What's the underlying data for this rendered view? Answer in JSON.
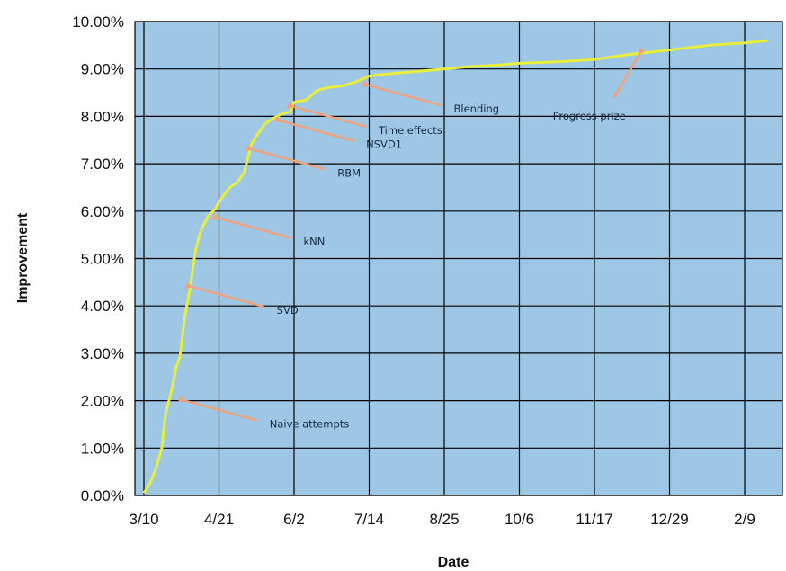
{
  "chart_data": {
    "type": "line",
    "title": "",
    "xlabel": "Date",
    "ylabel": "Improvement",
    "x_ticks": [
      "3/10",
      "4/21",
      "6/2",
      "7/14",
      "8/25",
      "10/6",
      "11/17",
      "12/29",
      "2/9"
    ],
    "y_ticks": [
      "0.00%",
      "1.00%",
      "2.00%",
      "3.00%",
      "4.00%",
      "5.00%",
      "6.00%",
      "7.00%",
      "8.00%",
      "9.00%",
      "10.00%"
    ],
    "ylim": [
      0,
      10
    ],
    "grid": true,
    "colors": {
      "plot_background": "#9ec7e6",
      "grid": "#000000",
      "line": "#e8ef3c",
      "arrow": "#f4a07a"
    },
    "series": [
      {
        "name": "",
        "x": [
          "3/10",
          "3/14",
          "3/17",
          "3/20",
          "3/22",
          "3/26",
          "3/28",
          "3/30",
          "4/2",
          "4/5",
          "4/6",
          "4/8",
          "4/11",
          "4/15",
          "4/19",
          "4/21",
          "4/27",
          "5/1",
          "5/5",
          "5/9",
          "5/13",
          "5/17",
          "5/21",
          "5/26",
          "5/31",
          "6/2",
          "6/5",
          "6/9",
          "6/15",
          "6/20",
          "6/30",
          "7/8",
          "7/14",
          "7/20",
          "8/1",
          "8/25",
          "9/8",
          "9/23",
          "10/6",
          "10/27",
          "11/17",
          "12/5",
          "12/29",
          "1/20",
          "2/9",
          "2/22"
        ],
        "values": [
          0.05,
          0.3,
          0.6,
          1.0,
          1.7,
          2.3,
          2.7,
          2.9,
          3.8,
          4.4,
          4.7,
          5.2,
          5.6,
          5.9,
          6.05,
          6.2,
          6.5,
          6.6,
          6.8,
          7.4,
          7.65,
          7.85,
          7.95,
          8.05,
          8.1,
          8.3,
          8.32,
          8.35,
          8.55,
          8.6,
          8.65,
          8.75,
          8.85,
          8.88,
          8.92,
          9.0,
          9.05,
          9.08,
          9.12,
          9.15,
          9.2,
          9.3,
          9.4,
          9.5,
          9.55,
          9.6
        ]
      }
    ],
    "annotations": [
      {
        "text": "Naive attempts",
        "x": "4/2",
        "y": 2.0
      },
      {
        "text": "SVD",
        "x": "4/6",
        "y": 4.4
      },
      {
        "text": "kNN",
        "x": "4/21",
        "y": 5.85
      },
      {
        "text": "RBM",
        "x": "5/10",
        "y": 7.3
      },
      {
        "text": "NSVD1",
        "x": "5/26",
        "y": 7.9
      },
      {
        "text": "Time effects",
        "x": "6/2",
        "y": 8.2
      },
      {
        "text": "Blending",
        "x": "7/14",
        "y": 8.65
      },
      {
        "text": "Progress prize",
        "x": "12/12",
        "y": 9.3
      }
    ]
  }
}
